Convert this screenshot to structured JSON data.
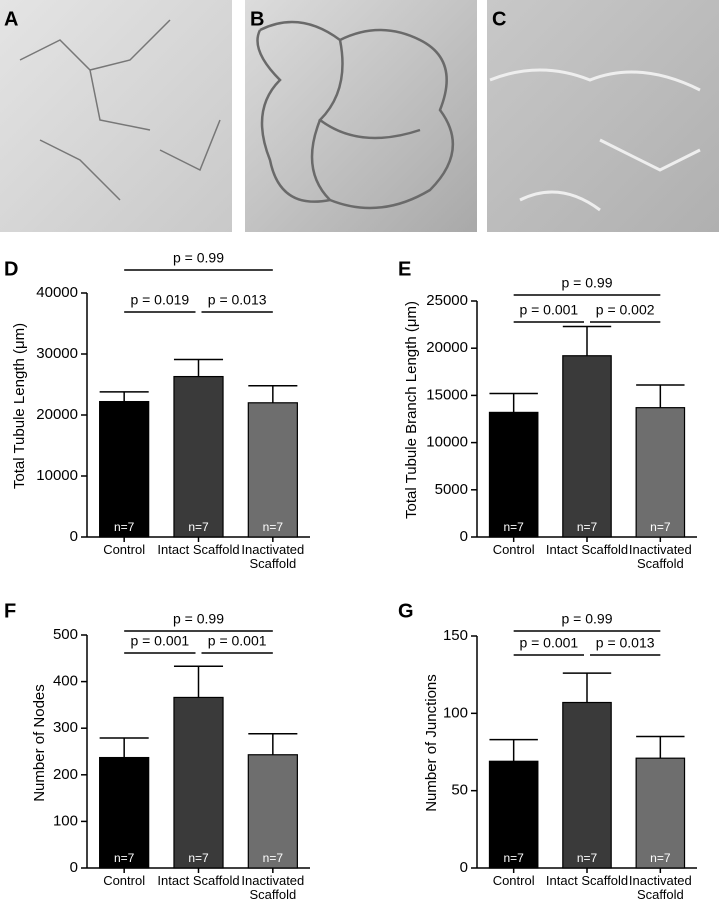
{
  "images": [
    {
      "label": "A"
    },
    {
      "label": "B"
    },
    {
      "label": "C"
    }
  ],
  "chart_data": [
    {
      "type": "bar",
      "panel": "D",
      "y_label": "Total Tubule Length (μm)",
      "categories": [
        "Control",
        "Intact Scaffold",
        "Inactivated Scaffold"
      ],
      "values": [
        22200,
        26300,
        22000
      ],
      "errors": [
        1600,
        2800,
        2800
      ],
      "colors": [
        "#000000",
        "#3a3a3a",
        "#6e6e6e"
      ],
      "sample_labels": [
        "n=7",
        "n=7",
        "n=7"
      ],
      "annotations": [
        "p = 0.99",
        "p = 0.019",
        "p = 0.013"
      ],
      "ylim": [
        0,
        40000
      ],
      "yticks": [
        0,
        10000,
        20000,
        30000,
        40000
      ]
    },
    {
      "type": "bar",
      "panel": "E",
      "y_label": "Total Tubule Branch Length (μm)",
      "categories": [
        "Control",
        "Intact Scaffold",
        "Inactivated Scaffold"
      ],
      "values": [
        13200,
        19200,
        13700
      ],
      "errors": [
        2000,
        3100,
        2400
      ],
      "colors": [
        "#000000",
        "#3a3a3a",
        "#6e6e6e"
      ],
      "sample_labels": [
        "n=7",
        "n=7",
        "n=7"
      ],
      "annotations": [
        "p = 0.99",
        "p = 0.001",
        "p = 0.002"
      ],
      "ylim": [
        0,
        25000
      ],
      "yticks": [
        0,
        5000,
        10000,
        15000,
        20000,
        25000
      ]
    },
    {
      "type": "bar",
      "panel": "F",
      "y_label": "Number of Nodes",
      "categories": [
        "Control",
        "Intact Scaffold",
        "Inactivated Scaffold"
      ],
      "values": [
        237,
        366,
        243
      ],
      "errors": [
        42,
        67,
        45
      ],
      "colors": [
        "#000000",
        "#3a3a3a",
        "#6e6e6e"
      ],
      "sample_labels": [
        "n=7",
        "n=7",
        "n=7"
      ],
      "annotations": [
        "p = 0.99",
        "p = 0.001",
        "p = 0.001"
      ],
      "ylim": [
        0,
        500
      ],
      "yticks": [
        0,
        100,
        200,
        300,
        400,
        500
      ]
    },
    {
      "type": "bar",
      "panel": "G",
      "y_label": "Number of Junctions",
      "categories": [
        "Control",
        "Intact Scaffold",
        "Inactivated Scaffold"
      ],
      "values": [
        69,
        107,
        71
      ],
      "errors": [
        14,
        19,
        14
      ],
      "colors": [
        "#000000",
        "#3a3a3a",
        "#6e6e6e"
      ],
      "sample_labels": [
        "n=7",
        "n=7",
        "n=7"
      ],
      "annotations": [
        "p = 0.99",
        "p = 0.001",
        "p = 0.013"
      ],
      "ylim": [
        0,
        150
      ],
      "yticks": [
        0,
        50,
        100,
        150
      ]
    }
  ]
}
